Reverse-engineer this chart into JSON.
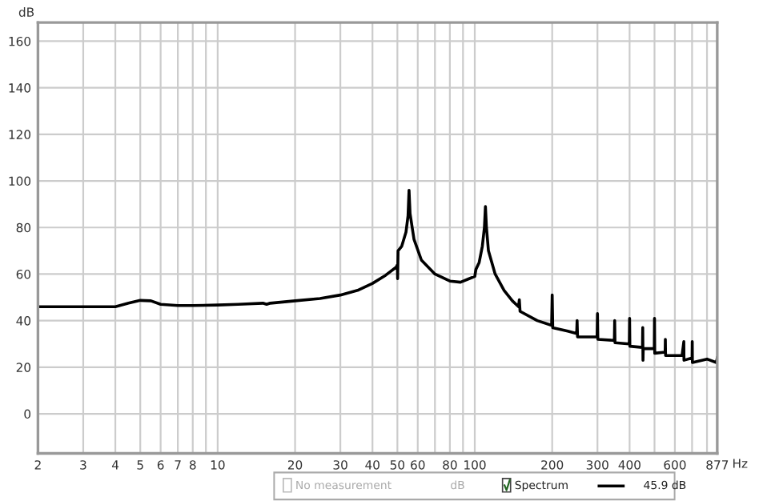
{
  "chart_data": {
    "type": "line",
    "xlabel": "Hz",
    "ylabel": "dB",
    "log": "x",
    "grid": true,
    "legend": "bottom",
    "line_style": "solid",
    "marker": "none",
    "xlim": [
      2,
      877
    ],
    "ylim": [
      -17,
      168
    ],
    "xticks": [
      2,
      3,
      4,
      5,
      6,
      7,
      8,
      {
        "value": 9,
        "label": null
      },
      10,
      20,
      30,
      40,
      50,
      60,
      {
        "value": 70,
        "label": null
      },
      80,
      {
        "value": 90,
        "label": null
      },
      100,
      200,
      300,
      400,
      {
        "value": 500,
        "label": null
      },
      600,
      {
        "value": 700,
        "label": null
      },
      {
        "value": 800,
        "label": null
      },
      877
    ],
    "yticks": [
      0,
      20,
      40,
      60,
      80,
      100,
      120,
      140,
      160
    ],
    "annotations": [
      "No measurement",
      "dB",
      "45.9 dB"
    ],
    "series": [
      {
        "name": "Spectrum",
        "color": "#000000",
        "x": [
          2,
          3,
          4,
          4.5,
          5,
          5.5,
          6,
          7,
          8,
          10,
          12,
          15,
          15.5,
          16,
          20,
          25,
          30,
          35,
          40,
          45,
          49.5,
          50,
          50.1,
          50.3,
          52,
          54,
          55,
          55.5,
          56,
          58,
          62,
          70,
          80,
          88,
          95,
          100,
          101,
          104,
          107,
          109,
          110,
          111,
          113,
          120,
          130,
          140,
          148,
          149,
          150,
          175,
          199,
          200,
          201,
          230,
          249,
          250,
          251,
          299,
          300,
          301,
          349,
          350,
          351,
          399,
          400,
          401,
          449,
          450,
          451,
          452,
          499,
          500,
          501,
          550,
          551,
          552,
          640,
          650,
          651,
          700,
          701,
          702,
          800,
          870,
          877
        ],
        "values": [
          46,
          46,
          46,
          47.5,
          48.7,
          48.5,
          47,
          46.5,
          46.5,
          46.7,
          47,
          47.5,
          47,
          47.5,
          48.5,
          49.5,
          51,
          53,
          56,
          59.5,
          63,
          64,
          58,
          70,
          72,
          78,
          85,
          96,
          86,
          75,
          66,
          60,
          57,
          56.5,
          58,
          59,
          62,
          65,
          72,
          80,
          89,
          80,
          70,
          60,
          53,
          48.5,
          46,
          49,
          44,
          40,
          38,
          51,
          37,
          35.5,
          34.5,
          40,
          33,
          33,
          43,
          32,
          31.5,
          40,
          30.5,
          30,
          41,
          29,
          28.5,
          37,
          23,
          28,
          28,
          41,
          26,
          26.5,
          32,
          25,
          25,
          31,
          23,
          24,
          31,
          22,
          23.5,
          22,
          24
        ]
      }
    ]
  }
}
